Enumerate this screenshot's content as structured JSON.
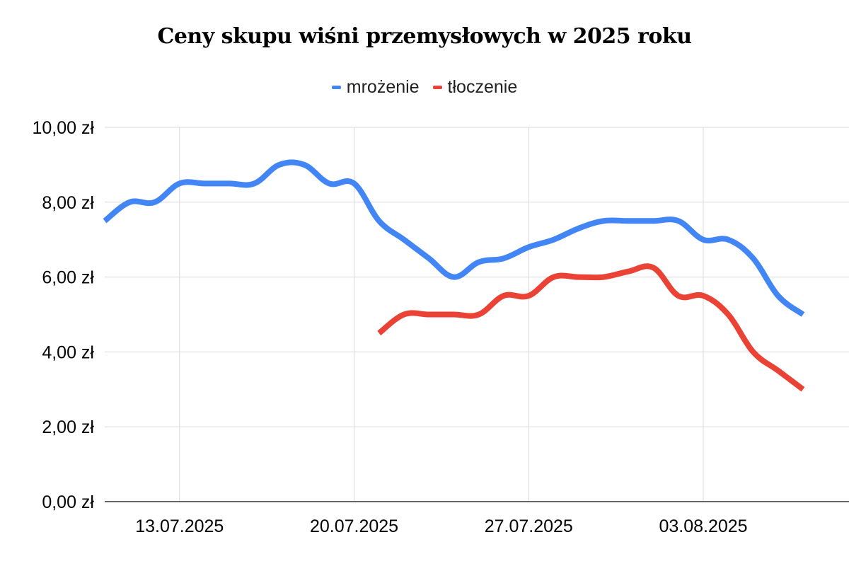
{
  "chart_data": {
    "type": "line",
    "title": "Ceny skupu wiśni przemysłowych w 2025 roku",
    "xlabel": "",
    "ylabel": "",
    "ylim": [
      0,
      10
    ],
    "y_ticks": [
      "0,00 zł",
      "2,00 zł",
      "4,00 zł",
      "6,00 zł",
      "8,00 zł",
      "10,00 zł"
    ],
    "y_tick_values": [
      0,
      2,
      4,
      6,
      8,
      10
    ],
    "x_tick_labels": [
      "13.07.2025",
      "20.07.2025",
      "27.07.2025",
      "03.08.2025"
    ],
    "x_tick_indices": [
      3,
      10,
      17,
      24
    ],
    "grid": true,
    "legend_position": "top",
    "x": [
      "10.07.2025",
      "11.07.2025",
      "12.07.2025",
      "13.07.2025",
      "14.07.2025",
      "15.07.2025",
      "16.07.2025",
      "17.07.2025",
      "18.07.2025",
      "19.07.2025",
      "20.07.2025",
      "21.07.2025",
      "22.07.2025",
      "23.07.2025",
      "24.07.2025",
      "25.07.2025",
      "26.07.2025",
      "27.07.2025",
      "28.07.2025",
      "29.07.2025",
      "30.07.2025",
      "31.07.2025",
      "01.08.2025",
      "02.08.2025",
      "03.08.2025",
      "04.08.2025",
      "05.08.2025",
      "06.08.2025",
      "07.08.2025"
    ],
    "series": [
      {
        "name": "mrożenie",
        "color": "#4285F4",
        "values": [
          7.5,
          8.0,
          8.0,
          8.5,
          8.5,
          8.5,
          8.5,
          9.0,
          9.0,
          8.5,
          8.5,
          7.5,
          7.0,
          6.5,
          6.0,
          6.4,
          6.5,
          6.8,
          7.0,
          7.3,
          7.5,
          7.5,
          7.5,
          7.5,
          7.0,
          7.0,
          6.5,
          5.5,
          5.0
        ]
      },
      {
        "name": "tłoczenie",
        "color": "#EA4335",
        "values": [
          null,
          null,
          null,
          null,
          null,
          null,
          null,
          null,
          null,
          null,
          null,
          4.5,
          5.0,
          5.0,
          5.0,
          5.0,
          5.5,
          5.5,
          6.0,
          6.0,
          6.0,
          6.15,
          6.25,
          5.5,
          5.5,
          5.0,
          4.0,
          3.5,
          3.0
        ]
      }
    ]
  },
  "legend": {
    "items": [
      {
        "label": "mrożenie",
        "color": "#4285F4"
      },
      {
        "label": "tłoczenie",
        "color": "#EA4335"
      }
    ]
  }
}
